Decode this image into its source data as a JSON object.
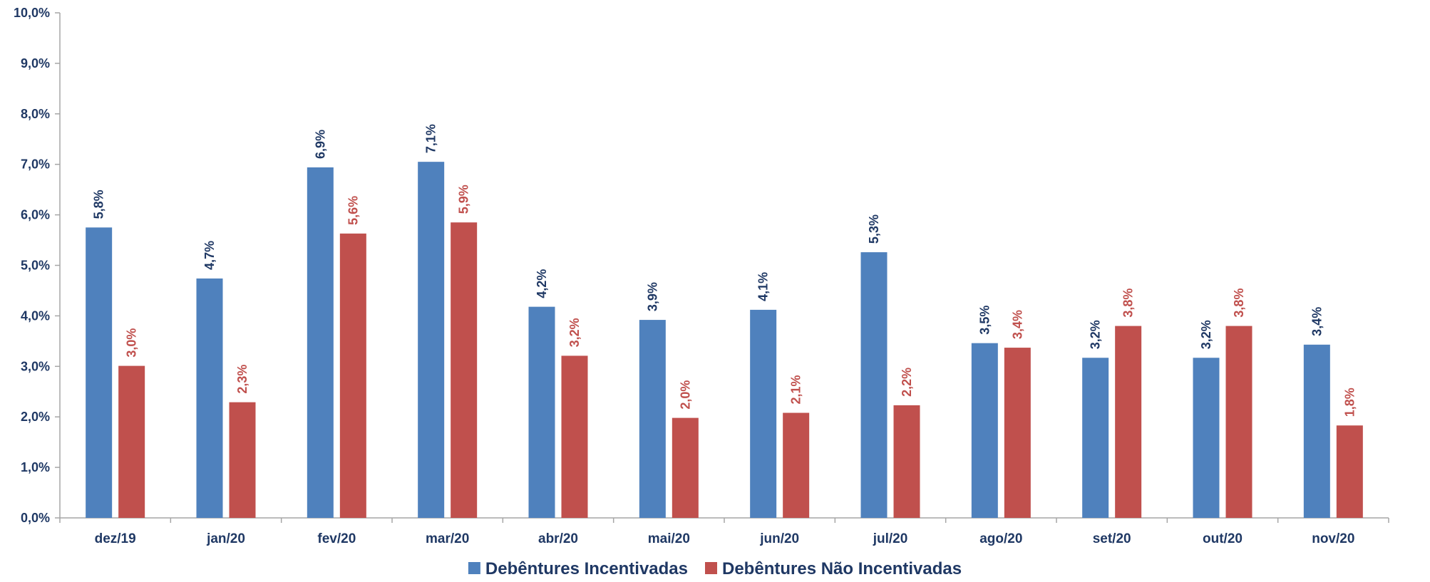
{
  "chart_data": {
    "type": "bar",
    "categories": [
      "dez/19",
      "jan/20",
      "fev/20",
      "mar/20",
      "abr/20",
      "mai/20",
      "jun/20",
      "jul/20",
      "ago/20",
      "set/20",
      "out/20",
      "nov/20"
    ],
    "series": [
      {
        "name": "Debêntures Incentivadas",
        "color": "#4f81bd",
        "label_color": "#1f3864",
        "values": [
          5.75,
          4.74,
          6.94,
          7.05,
          4.18,
          3.92,
          4.12,
          5.26,
          3.46,
          3.17,
          3.17,
          3.43
        ],
        "labels": [
          "5,8%",
          "4,7%",
          "6,9%",
          "7,1%",
          "4,2%",
          "3,9%",
          "4,1%",
          "5,3%",
          "3,5%",
          "3,2%",
          "3,2%",
          "3,4%"
        ]
      },
      {
        "name": "Debêntures Não Incentivadas",
        "color": "#c0504d",
        "label_color": "#c0504d",
        "values": [
          3.01,
          2.29,
          5.63,
          5.85,
          3.21,
          1.98,
          2.08,
          2.23,
          3.37,
          3.8,
          3.8,
          1.83
        ],
        "labels": [
          "3,0%",
          "2,3%",
          "5,6%",
          "5,9%",
          "3,2%",
          "2,0%",
          "2,1%",
          "2,2%",
          "3,4%",
          "3,8%",
          "3,8%",
          "1,8%"
        ]
      }
    ],
    "yticks": [
      "0,0%",
      "1,0%",
      "2,0%",
      "3,0%",
      "4,0%",
      "5,0%",
      "6,0%",
      "7,0%",
      "8,0%",
      "9,0%",
      "10,0%"
    ],
    "ylim": [
      0,
      10
    ],
    "legend_position": "bottom",
    "grid": false
  }
}
